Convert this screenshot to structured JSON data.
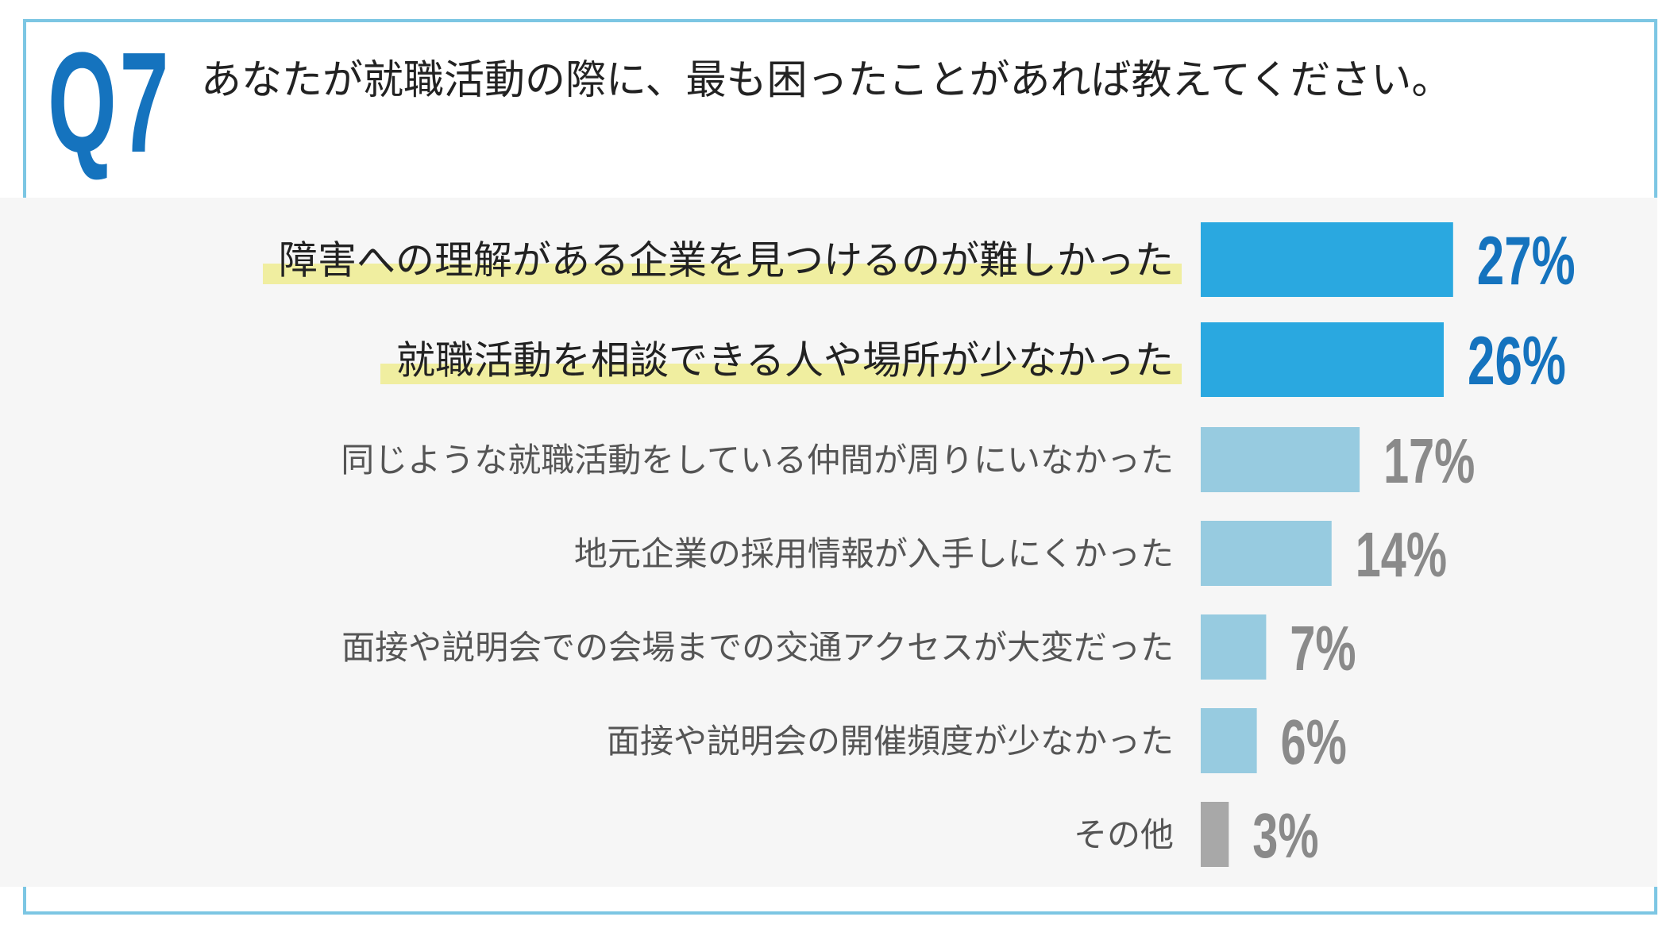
{
  "question": {
    "number": "Q7",
    "text": "あなたが就職活動の際に、最も困ったことがあれば教えてください。"
  },
  "colors": {
    "accent": "#1573be",
    "top_bar": "#2aa8e0",
    "mid_bar": "#97cbe0",
    "other_bar": "#a8a8a8",
    "highlight": "#f0eea0",
    "frame": "#7cc6e3"
  },
  "chart_data": {
    "type": "bar",
    "orientation": "horizontal",
    "categories": [
      "障害への理解がある企業を見つけるのが難しかった",
      "就職活動を相談できる人や場所が少なかった",
      "同じような就職活動をしている仲間が周りにいなかった",
      "地元企業の採用情報が入手しにくかった",
      "面接や説明会での会場までの交通アクセスが大変だった",
      "面接や説明会の開催頻度が少なかった",
      "その他"
    ],
    "values": [
      27,
      26,
      17,
      14,
      7,
      6,
      3
    ],
    "value_labels": [
      "27%",
      "26%",
      "17%",
      "14%",
      "7%",
      "6%",
      "3%"
    ],
    "unit": "%",
    "highlighted": [
      true,
      true,
      false,
      false,
      false,
      false,
      false
    ],
    "bar_style": [
      "top",
      "top",
      "mid",
      "mid",
      "mid",
      "mid",
      "other"
    ],
    "grid": false,
    "legend": "none"
  }
}
